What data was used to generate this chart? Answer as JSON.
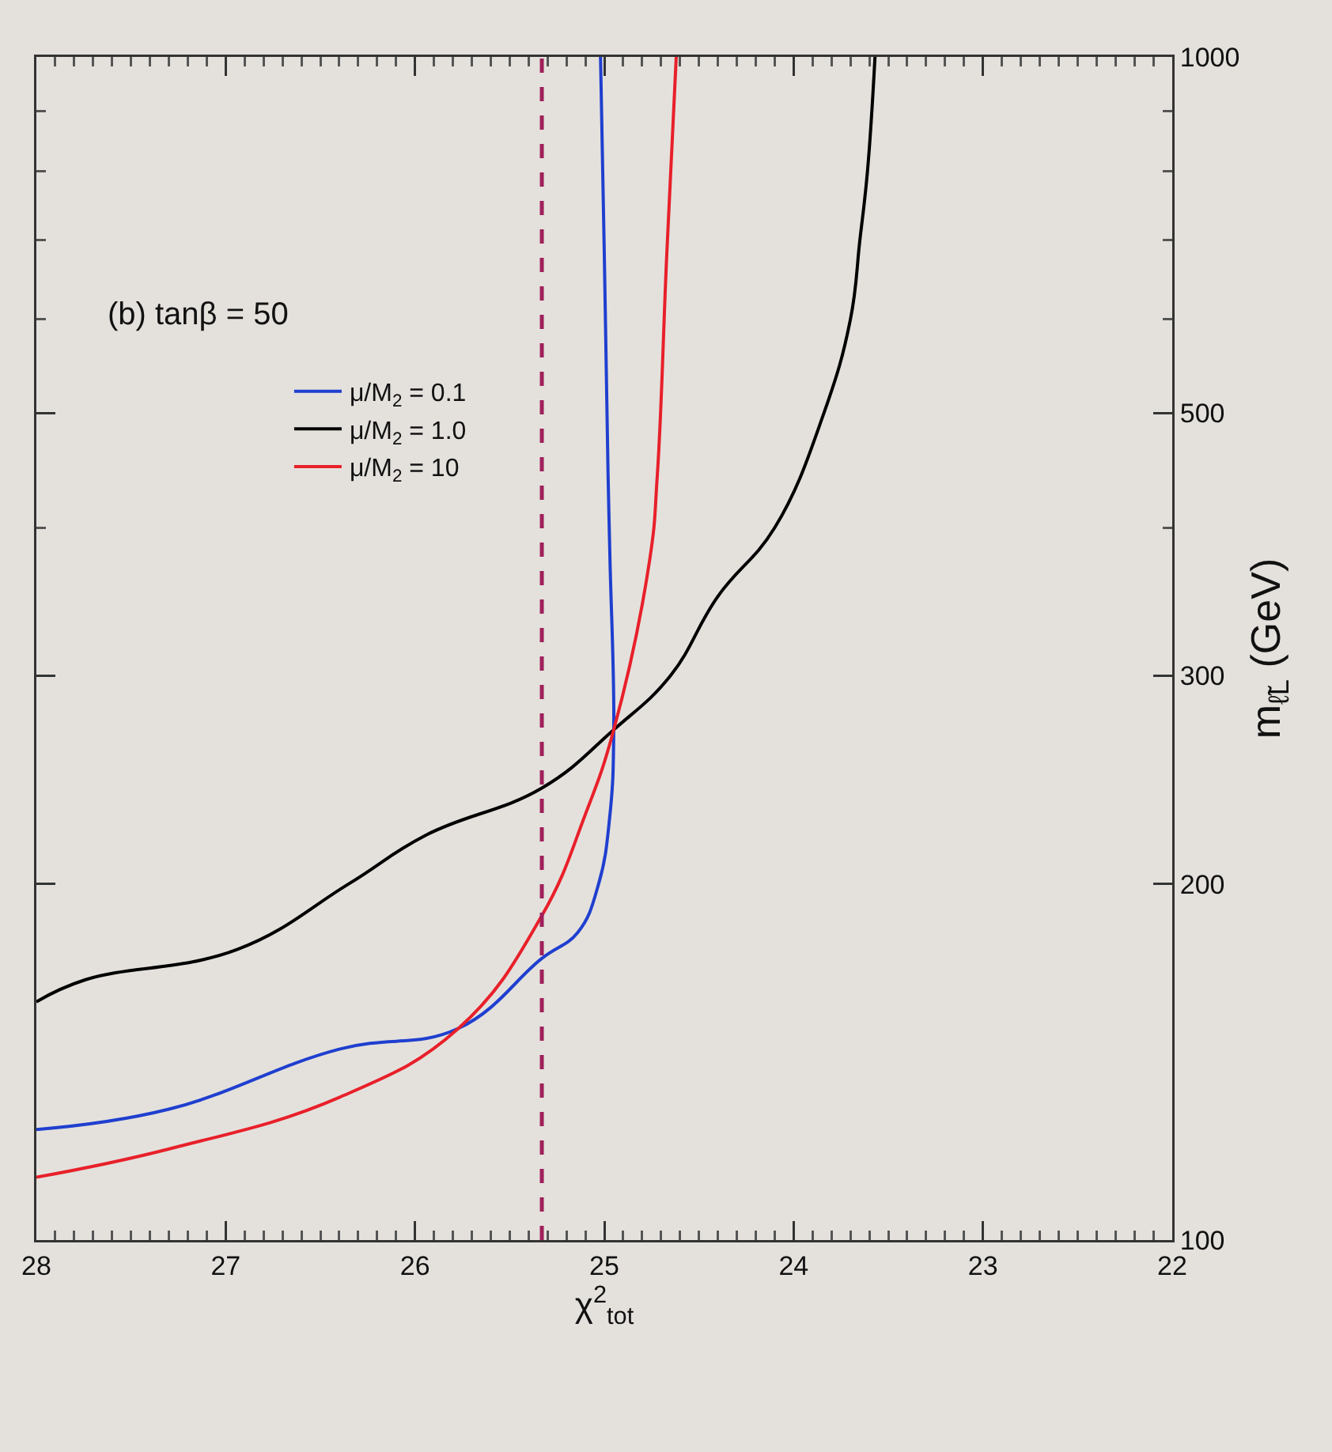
{
  "chart_data": {
    "type": "line",
    "xlabel": "χ$^{2}$$_{tot}$",
    "ylabel": "m$_{ℓ̃L}$ (GeV)",
    "log": "y",
    "legend": "top left",
    "grid": false,
    "marker": "none",
    "line_style": "solid",
    "annotations": [
      "(b) tanβ = 50"
    ],
    "ylim": [
      100,
      1000
    ],
    "yticks": [
      100,
      200,
      300,
      {
        "value": 400,
        "label": null
      },
      500,
      {
        "value": 600,
        "label": null
      },
      {
        "value": 700,
        "label": null
      },
      {
        "value": 800,
        "label": null
      },
      {
        "value": 900,
        "label": null
      },
      1000
    ],
    "xlim": [
      28,
      22
    ],
    "xticks": [
      22,
      {
        "value": 22.1,
        "label": null
      },
      {
        "value": 22.2,
        "label": null
      },
      {
        "value": 22.3,
        "label": null
      },
      {
        "value": 22.4,
        "label": null
      },
      {
        "value": 22.5,
        "label": null
      },
      {
        "value": 22.6,
        "label": null
      },
      {
        "value": 22.7,
        "label": null
      },
      {
        "value": 22.8,
        "label": null
      },
      {
        "value": 22.9,
        "label": null
      },
      23,
      {
        "value": 23.1,
        "label": null
      },
      {
        "value": 23.2,
        "label": null
      },
      {
        "value": 23.3,
        "label": null
      },
      {
        "value": 23.4,
        "label": null
      },
      {
        "value": 23.5,
        "label": null
      },
      {
        "value": 23.6,
        "label": null
      },
      {
        "value": 23.7,
        "label": null
      },
      {
        "value": 23.8,
        "label": null
      },
      {
        "value": 23.9,
        "label": null
      },
      24,
      {
        "value": 24.1,
        "label": null
      },
      {
        "value": 24.2,
        "label": null
      },
      {
        "value": 24.3,
        "label": null
      },
      {
        "value": 24.4,
        "label": null
      },
      {
        "value": 24.5,
        "label": null
      },
      {
        "value": 24.6,
        "label": null
      },
      {
        "value": 24.7,
        "label": null
      },
      {
        "value": 24.8,
        "label": null
      },
      {
        "value": 24.9,
        "label": null
      },
      25,
      {
        "value": 25.1,
        "label": null
      },
      {
        "value": 25.2,
        "label": null
      },
      {
        "value": 25.3,
        "label": null
      },
      {
        "value": 25.4,
        "label": null
      },
      {
        "value": 25.5,
        "label": null
      },
      {
        "value": 25.6,
        "label": null
      },
      {
        "value": 25.7,
        "label": null
      },
      {
        "value": 25.8,
        "label": null
      },
      {
        "value": 25.9,
        "label": null
      },
      26,
      {
        "value": 26.1,
        "label": null
      },
      {
        "value": 26.2,
        "label": null
      },
      {
        "value": 26.3,
        "label": null
      },
      {
        "value": 26.4,
        "label": null
      },
      {
        "value": 26.5,
        "label": null
      },
      {
        "value": 26.6,
        "label": null
      },
      {
        "value": 26.7,
        "label": null
      },
      {
        "value": 26.8,
        "label": null
      },
      {
        "value": 26.9,
        "label": null
      },
      27,
      {
        "value": 27.1,
        "label": null
      },
      {
        "value": 27.2,
        "label": null
      },
      {
        "value": 27.3,
        "label": null
      },
      {
        "value": 27.4,
        "label": null
      },
      {
        "value": 27.5,
        "label": null
      },
      {
        "value": 27.6,
        "label": null
      },
      {
        "value": 27.7,
        "label": null
      },
      {
        "value": 27.8,
        "label": null
      },
      {
        "value": 27.9,
        "label": null
      },
      28
    ],
    "ref_lines": [
      {
        "axis": "x",
        "value": 25.33,
        "color": "#a0205a",
        "line_style": "dashed"
      }
    ],
    "series": [
      {
        "name": "μ/M$_{2}$ = 0.1",
        "color": "#1f3fcf",
        "values": [
          124,
          129,
          145,
          151,
          173,
          182,
          200,
          229,
          270,
          376,
          443,
          681,
          1000
        ],
        "x": [
          28,
          27.3,
          26.4,
          25.77,
          25.33,
          25.14,
          25.03,
          24.97,
          24.95,
          24.97,
          24.98,
          25.0,
          25.02
        ]
      },
      {
        "name": "μ/M$_{2}$ = 1.0",
        "color": "#000000",
        "values": [
          159,
          166,
          176,
          200,
          220,
          241,
          270,
          300,
          350,
          400,
          500,
          600,
          700,
          800,
          1000
        ],
        "x": [
          28,
          27.74,
          26.94,
          26.35,
          25.94,
          25.33,
          24.95,
          24.65,
          24.4,
          24.1,
          23.84,
          23.7,
          23.65,
          23.61,
          23.57
        ]
      },
      {
        "name": "μ/M$_{2}$ = 10",
        "color": "#e8202a",
        "values": [
          113,
          119.5,
          132,
          151,
          188,
          229,
          270,
          376,
          443,
          681,
          1000
        ],
        "x": [
          28,
          27.29,
          26.4,
          25.77,
          25.33,
          25.1,
          24.95,
          24.76,
          24.72,
          24.67,
          24.62
        ]
      }
    ]
  }
}
